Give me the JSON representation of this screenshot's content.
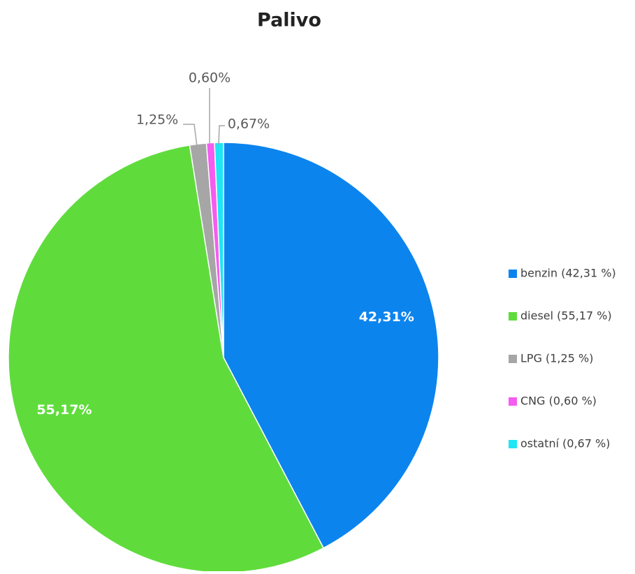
{
  "chart_data": {
    "type": "pie",
    "title": "Palivo",
    "categories": [
      "benzin (42,31 %)",
      "diesel (55,17 %)",
      "LPG (1,25 %)",
      "CNG (0,60 %)",
      "ostatní (0,67 %)"
    ],
    "values": [
      42.31,
      55.17,
      1.25,
      0.6,
      0.67
    ],
    "value_labels": [
      "42,31%",
      "55,17%",
      "1,25%",
      "0,60%",
      "0,67%"
    ],
    "colors": [
      "#0c84ee",
      "#5fdc3c",
      "#a6a6a6",
      "#f55cf0",
      "#1ee6f5"
    ],
    "legend": "right"
  }
}
